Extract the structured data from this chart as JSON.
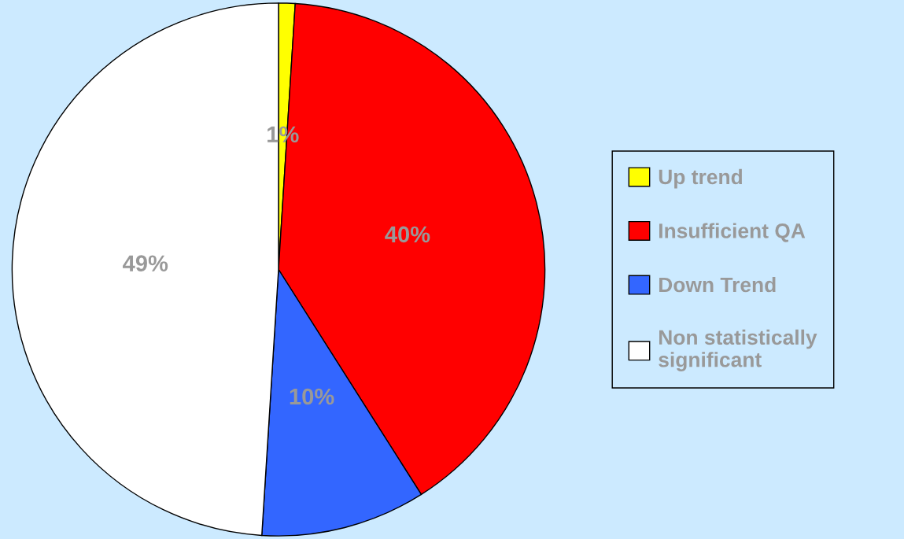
{
  "chart_data": {
    "type": "pie",
    "categories": [
      "Up trend",
      "Insufficient QA",
      "Down Trend",
      "Non statistically\nsignificant"
    ],
    "values": [
      1,
      40,
      10,
      49
    ],
    "colors": [
      "#ffff00",
      "#ff0000",
      "#3366ff",
      "#ffffff"
    ],
    "value_labels": [
      "1%",
      "40%",
      "10%",
      "49%"
    ],
    "legend": "right"
  }
}
